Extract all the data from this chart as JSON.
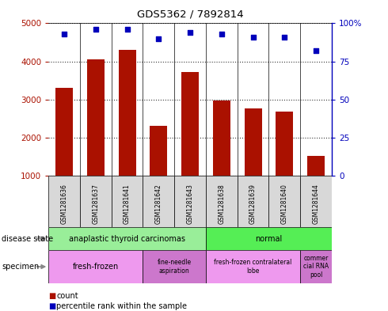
{
  "title": "GDS5362 / 7892814",
  "samples": [
    "GSM1281636",
    "GSM1281637",
    "GSM1281641",
    "GSM1281642",
    "GSM1281643",
    "GSM1281638",
    "GSM1281639",
    "GSM1281640",
    "GSM1281644"
  ],
  "counts": [
    3300,
    4050,
    4300,
    2300,
    3720,
    2970,
    2770,
    2680,
    1520
  ],
  "percentiles": [
    93,
    96,
    96,
    90,
    94,
    93,
    91,
    91,
    82
  ],
  "ylim_left": [
    1000,
    5000
  ],
  "ylim_right": [
    0,
    100
  ],
  "yticks_left": [
    1000,
    2000,
    3000,
    4000,
    5000
  ],
  "yticks_right": [
    0,
    25,
    50,
    75,
    100
  ],
  "bar_color": "#aa1100",
  "dot_color": "#0000bb",
  "disease_state_labels": [
    "anaplastic thyroid carcinomas",
    "normal"
  ],
  "disease_state_ranges": [
    [
      0,
      5
    ],
    [
      5,
      9
    ]
  ],
  "disease_state_colors": [
    "#99ee99",
    "#55ee55"
  ],
  "specimen_labels": [
    "fresh-frozen",
    "fine-needle\naspiration",
    "fresh-frozen contralateral\nlobe",
    "commer\ncial RNA\npool"
  ],
  "specimen_ranges": [
    [
      0,
      3
    ],
    [
      3,
      5
    ],
    [
      5,
      8
    ],
    [
      8,
      9
    ]
  ],
  "specimen_color_light": "#ee88ee",
  "specimen_color_dark": "#cc66cc",
  "specimen_bg_alt": [
    false,
    true,
    false,
    true
  ],
  "cell_bg": "#d8d8d8",
  "grid_dotted_color": "#333333"
}
